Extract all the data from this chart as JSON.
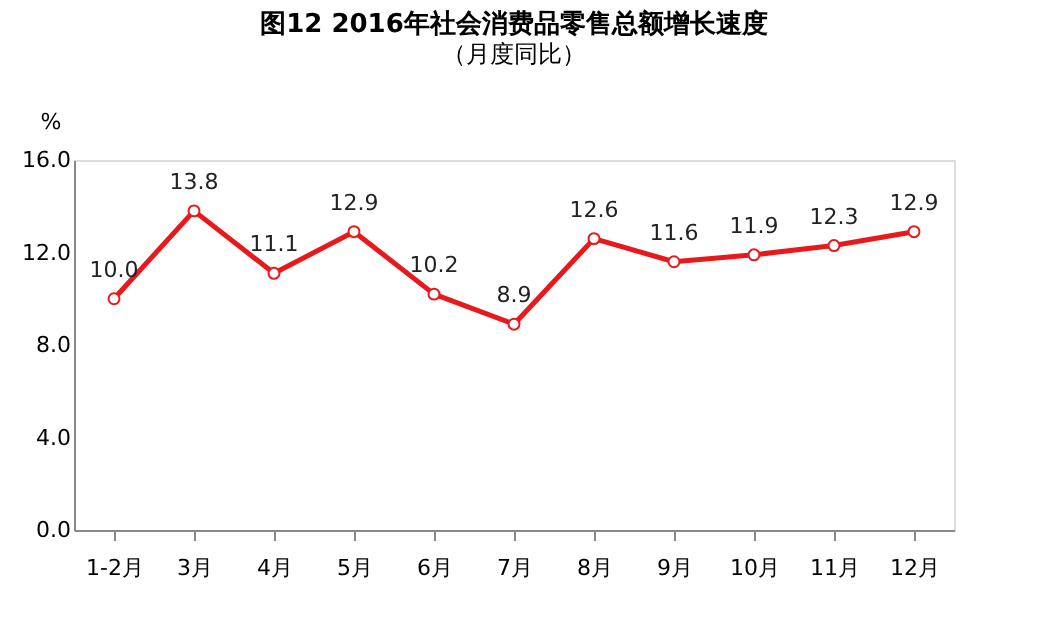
{
  "chart_data": {
    "type": "line",
    "title": "图12 2016年社会消费品零售总额增长速度",
    "subtitle": "（月度同比）",
    "ylabel": "%",
    "categories": [
      "1-2月",
      "3月",
      "4月",
      "5月",
      "6月",
      "7月",
      "8月",
      "9月",
      "10月",
      "11月",
      "12月"
    ],
    "series": [
      {
        "color": "#e8191c",
        "values": [
          10.0,
          13.8,
          11.1,
          12.9,
          10.2,
          8.9,
          12.6,
          11.6,
          11.9,
          12.3,
          12.9
        ],
        "value_labels": [
          "10.0",
          "13.8",
          "11.1",
          "12.9",
          "10.2",
          "8.9",
          "12.6",
          "11.6",
          "11.9",
          "12.3",
          "12.9"
        ]
      }
    ],
    "ylim": [
      0,
      16
    ],
    "yticks": [
      {
        "value": 0,
        "label": "0.0"
      },
      {
        "value": 4,
        "label": "4.0"
      },
      {
        "value": 8,
        "label": "8.0"
      },
      {
        "value": 12,
        "label": "12.0"
      },
      {
        "value": 16,
        "label": "16.0"
      }
    ],
    "grid": false,
    "legend": false,
    "marker": "circle",
    "line_style": "solid"
  }
}
